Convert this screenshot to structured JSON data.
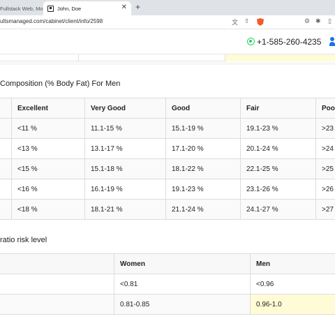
{
  "browser": {
    "tabs": [
      {
        "title": "Fullstack Web, Mob"
      },
      {
        "title": "John, Doe"
      }
    ],
    "url": "ultsmanaged.com/cabinet/client/info/2598"
  },
  "header": {
    "phone": "+1-585-260-4235"
  },
  "body_fat": {
    "title": "Composition (% Body Fat) For Men",
    "headers": [
      "",
      "Excellent",
      "Very Good",
      "Good",
      "Fair",
      "Poor"
    ],
    "rows": [
      [
        "",
        "<11 %",
        "11.1-15 %",
        "15.1-19 %",
        "19.1-23 %",
        ">23"
      ],
      [
        "",
        "<13 %",
        "13.1-17 %",
        "17.1-20 %",
        "20.1-24 %",
        ">24"
      ],
      [
        "",
        "<15 %",
        "15.1-18 %",
        "18.1-22 %",
        "22.1-25 %",
        ">25"
      ],
      [
        "",
        "<16 %",
        "16.1-19 %",
        "19.1-23 %",
        "23.1-26 %",
        ">26"
      ],
      [
        "",
        "<18 %",
        "18.1-21 %",
        "21.1-24 %",
        "24.1-27 %",
        ">27"
      ]
    ]
  },
  "waist_ratio": {
    "title": "ratio risk level",
    "headers": [
      "",
      "Women",
      "Men"
    ],
    "rows": [
      [
        "",
        "<0.81",
        "<0.96"
      ],
      [
        "",
        "0.81-0.85",
        "0.96-1.0"
      ]
    ]
  },
  "colors": {
    "highlight": "#fffbd6",
    "whatsapp": "#25d366",
    "brave": "#f25c2a",
    "user": "#1a73e8"
  }
}
